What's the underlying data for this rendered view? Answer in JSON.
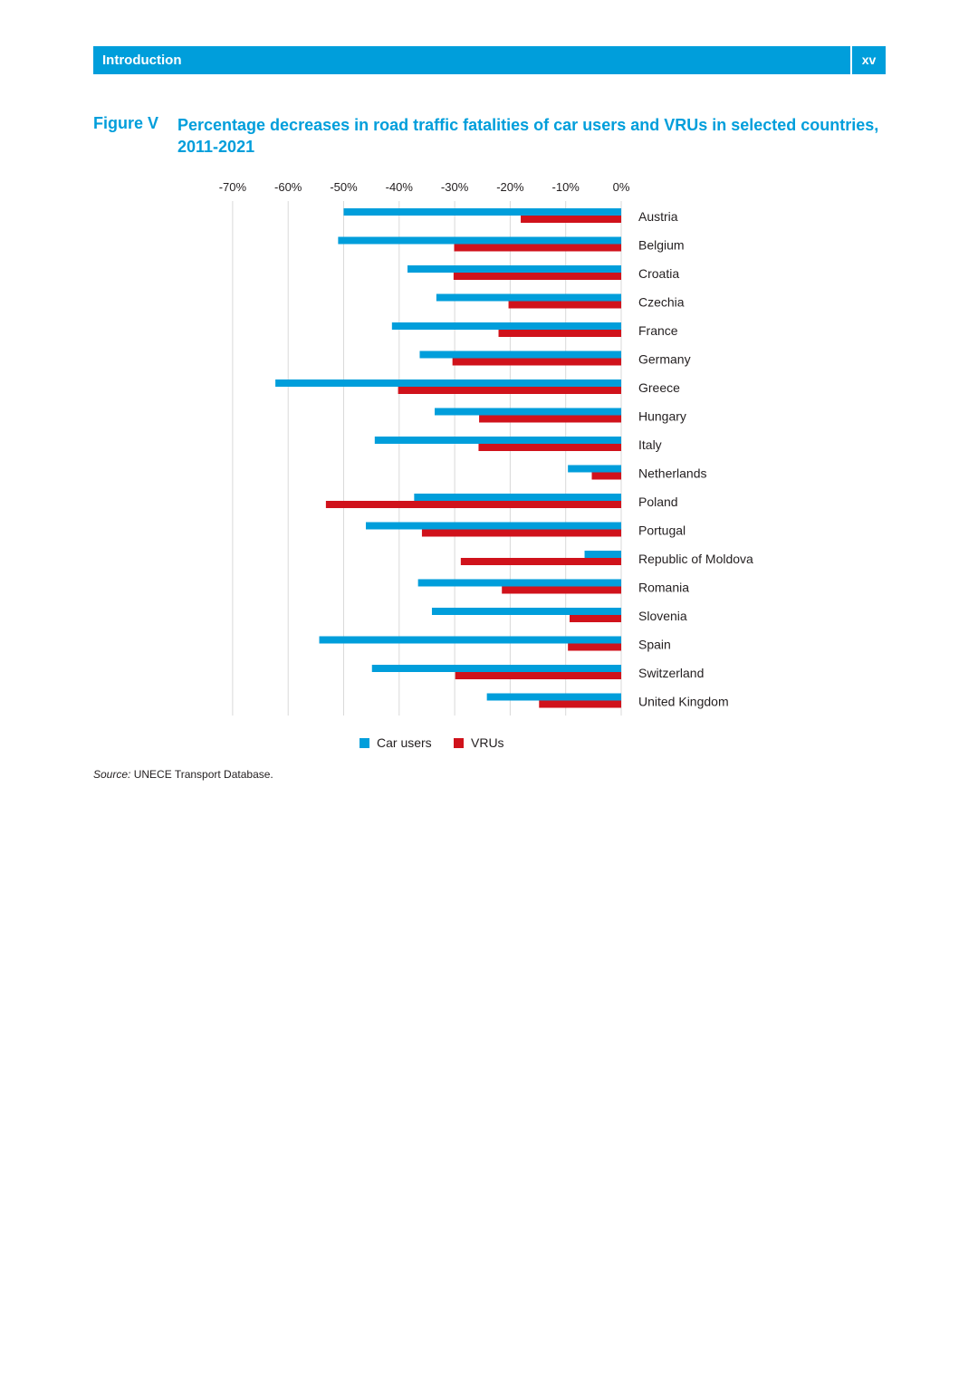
{
  "header": {
    "section_title": "Introduction",
    "page_number": "xv",
    "bar_color": "#009edb"
  },
  "figure": {
    "label": "Figure V",
    "title": "Percentage decreases in road traffic fatalities of car users and VRUs in selected countries, 2011-2021"
  },
  "chart_data": {
    "type": "bar",
    "orientation": "horizontal",
    "title": "Percentage decreases in road traffic fatalities of car users and VRUs in selected countries, 2011-2021",
    "xlabel": "",
    "ylabel": "",
    "xlim": [
      -70,
      0
    ],
    "x_ticks": [
      "-70%",
      "-60%",
      "-50%",
      "-40%",
      "-30%",
      "-20%",
      "-10%",
      "0%"
    ],
    "x_tick_values": [
      -70,
      -60,
      -50,
      -40,
      -30,
      -20,
      -10,
      0
    ],
    "grid": true,
    "legend_position": "bottom-center",
    "categories": [
      "Austria",
      "Belgium",
      "Croatia",
      "Czechia",
      "France",
      "Germany",
      "Greece",
      "Hungary",
      "Italy",
      "Netherlands",
      "Poland",
      "Portugal",
      "Republic of Moldova",
      "Romania",
      "Slovenia",
      "Spain",
      "Switzerland",
      "United Kingdom"
    ],
    "series": [
      {
        "name": "Car users",
        "color": "#009edb",
        "values": [
          -50,
          -51,
          -38.5,
          -33.3,
          -41.3,
          -36.3,
          -62.3,
          -33.6,
          -44.4,
          -9.6,
          -37.3,
          -46,
          -6.6,
          -36.6,
          -34.1,
          -54.4,
          -44.9,
          -24.2
        ]
      },
      {
        "name": "VRUs",
        "color": "#d0121b",
        "values": [
          -18.1,
          -30.1,
          -30.2,
          -20.3,
          -22.1,
          -30.4,
          -40.2,
          -25.6,
          -25.7,
          -5.3,
          -53.2,
          -35.9,
          -28.9,
          -21.5,
          -9.3,
          -9.6,
          -29.9,
          -14.8
        ]
      }
    ]
  },
  "source": {
    "label": "Source:",
    "text": " UNECE Transport Database."
  }
}
